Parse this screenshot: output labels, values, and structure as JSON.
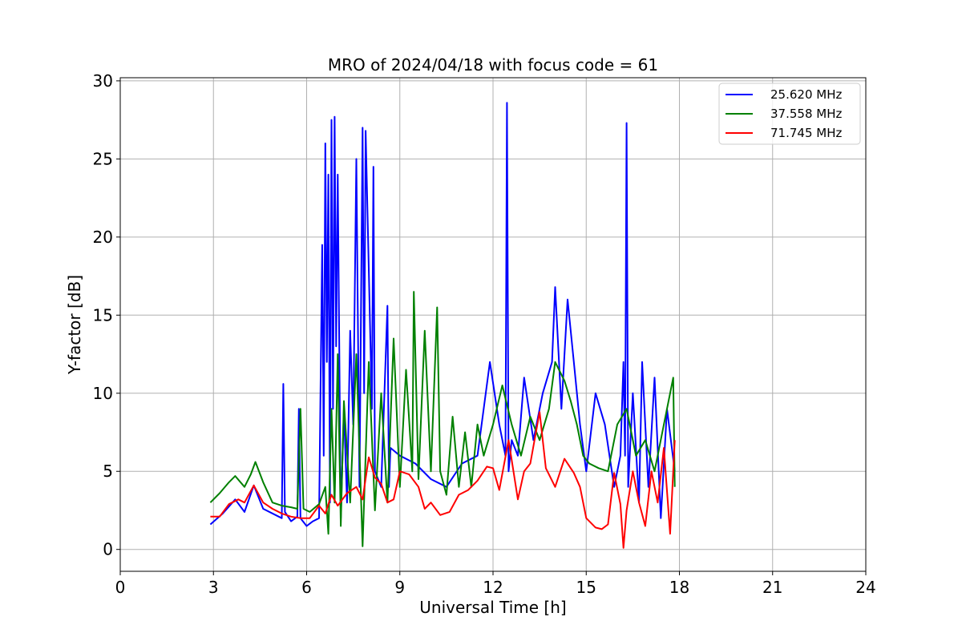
{
  "chart_data": {
    "type": "line",
    "title": "MRO of 2024/04/18 with focus code = 61",
    "xlabel": "Universal Time [h]",
    "ylabel": "Y-factor [dB]",
    "xlim": [
      0,
      24
    ],
    "ylim": [
      -1.4,
      30.2
    ],
    "xticks": [
      0,
      3,
      6,
      9,
      12,
      15,
      18,
      21,
      24
    ],
    "yticks": [
      0,
      5,
      10,
      15,
      20,
      25,
      30
    ],
    "grid": true,
    "legend_position": "top-right",
    "series": [
      {
        "name": "25.620 MHz",
        "color": "#0000ff",
        "x": [
          2.9,
          3.3,
          3.7,
          4.0,
          4.3,
          4.6,
          5.0,
          5.2,
          5.25,
          5.3,
          5.5,
          5.7,
          5.75,
          5.8,
          6.0,
          6.2,
          6.4,
          6.5,
          6.55,
          6.6,
          6.65,
          6.7,
          6.75,
          6.8,
          6.85,
          6.9,
          6.95,
          7.0,
          7.1,
          7.2,
          7.3,
          7.4,
          7.5,
          7.6,
          7.7,
          7.8,
          7.85,
          7.9,
          8.0,
          8.1,
          8.15,
          8.2,
          8.4,
          8.6,
          8.65,
          8.7,
          9.0,
          9.5,
          10.0,
          10.5,
          11.0,
          11.5,
          11.9,
          12.2,
          12.4,
          12.45,
          12.5,
          12.6,
          12.8,
          13.0,
          13.3,
          13.6,
          13.9,
          14.0,
          14.2,
          14.4,
          14.6,
          14.8,
          15.0,
          15.3,
          15.6,
          15.9,
          16.1,
          16.2,
          16.25,
          16.3,
          16.35,
          16.5,
          16.7,
          16.8,
          17.0,
          17.2,
          17.4,
          17.6,
          17.85
        ],
        "values": [
          1.6,
          2.3,
          3.2,
          2.4,
          4.1,
          2.6,
          2.2,
          2.0,
          10.6,
          2.4,
          1.8,
          2.1,
          9.0,
          2.0,
          1.5,
          1.8,
          2.0,
          19.5,
          6.0,
          26.0,
          12.0,
          24.0,
          3.0,
          27.5,
          9.0,
          27.7,
          13.0,
          24.0,
          2.0,
          9.0,
          3.0,
          14.0,
          8.0,
          25.0,
          4.0,
          27.0,
          10.0,
          26.8,
          18.0,
          9.0,
          24.5,
          5.0,
          4.0,
          15.6,
          4.0,
          6.5,
          6.0,
          5.5,
          4.5,
          4.0,
          5.5,
          6.0,
          12.0,
          8.0,
          6.0,
          28.6,
          5.0,
          7.0,
          6.0,
          11.0,
          7.0,
          10.0,
          12.0,
          16.8,
          9.0,
          16.0,
          12.0,
          8.0,
          5.0,
          10.0,
          8.0,
          4.0,
          6.0,
          12.0,
          6.0,
          27.3,
          4.0,
          10.0,
          3.0,
          12.0,
          4.0,
          11.0,
          2.0,
          9.0,
          5.0
        ]
      },
      {
        "name": "37.558 MHz",
        "color": "#008000",
        "x": [
          2.9,
          3.2,
          3.5,
          3.7,
          4.0,
          4.2,
          4.35,
          4.6,
          4.9,
          5.2,
          5.5,
          5.7,
          5.8,
          5.9,
          6.1,
          6.4,
          6.6,
          6.7,
          6.8,
          6.9,
          7.0,
          7.1,
          7.2,
          7.4,
          7.6,
          7.8,
          8.0,
          8.2,
          8.4,
          8.6,
          8.8,
          9.0,
          9.2,
          9.4,
          9.45,
          9.6,
          9.8,
          10.0,
          10.2,
          10.3,
          10.5,
          10.7,
          10.9,
          11.1,
          11.3,
          11.5,
          11.7,
          12.0,
          12.3,
          12.6,
          12.9,
          13.2,
          13.5,
          13.8,
          14.0,
          14.3,
          14.5,
          14.7,
          14.9,
          15.1,
          15.4,
          15.7,
          16.0,
          16.3,
          16.6,
          16.9,
          17.2,
          17.5,
          17.8,
          17.85
        ],
        "values": [
          3.0,
          3.6,
          4.3,
          4.7,
          4.0,
          4.8,
          5.6,
          4.3,
          3.0,
          2.8,
          2.7,
          2.6,
          9.0,
          2.6,
          2.4,
          2.9,
          4.0,
          1.0,
          9.0,
          3.0,
          12.5,
          1.5,
          9.5,
          3.0,
          12.5,
          0.2,
          12.0,
          2.5,
          10.0,
          3.0,
          13.5,
          4.0,
          11.5,
          5.0,
          16.5,
          4.5,
          14.0,
          5.0,
          15.5,
          5.0,
          3.5,
          8.5,
          4.0,
          7.5,
          4.0,
          8.0,
          6.0,
          8.0,
          10.5,
          8.0,
          6.0,
          8.5,
          7.0,
          9.0,
          12.0,
          10.8,
          9.5,
          8.0,
          6.0,
          5.5,
          5.2,
          5.0,
          8.0,
          9.0,
          6.0,
          7.0,
          5.0,
          8.0,
          11.0,
          4.0
        ]
      },
      {
        "name": "71.745 MHz",
        "color": "#ff0000",
        "x": [
          2.9,
          3.2,
          3.5,
          3.8,
          4.0,
          4.3,
          4.6,
          4.9,
          5.2,
          5.5,
          5.8,
          6.1,
          6.4,
          6.6,
          6.8,
          7.0,
          7.3,
          7.6,
          7.8,
          8.0,
          8.2,
          8.4,
          8.6,
          8.8,
          9.0,
          9.3,
          9.6,
          9.8,
          10.0,
          10.3,
          10.6,
          10.9,
          11.2,
          11.5,
          11.8,
          12.0,
          12.2,
          12.5,
          12.8,
          13.0,
          13.2,
          13.5,
          13.7,
          14.0,
          14.3,
          14.6,
          14.8,
          15.0,
          15.3,
          15.5,
          15.7,
          15.9,
          16.1,
          16.2,
          16.3,
          16.5,
          16.7,
          16.9,
          17.1,
          17.3,
          17.5,
          17.7,
          17.85
        ],
        "values": [
          2.1,
          2.1,
          2.9,
          3.2,
          3.0,
          4.1,
          3.0,
          2.6,
          2.3,
          2.1,
          2.0,
          2.0,
          2.8,
          2.3,
          3.5,
          2.8,
          3.6,
          4.0,
          3.2,
          5.9,
          4.6,
          4.2,
          3.0,
          3.2,
          5.0,
          4.8,
          4.0,
          2.6,
          3.0,
          2.2,
          2.4,
          3.5,
          3.8,
          4.4,
          5.3,
          5.2,
          3.8,
          7.0,
          3.2,
          5.0,
          5.5,
          8.8,
          5.2,
          4.0,
          5.8,
          4.9,
          4.0,
          2.0,
          1.4,
          1.3,
          1.6,
          4.9,
          2.9,
          0.1,
          2.5,
          5.0,
          3.0,
          1.5,
          5.0,
          3.0,
          6.5,
          1.0,
          7.0
        ]
      }
    ]
  }
}
